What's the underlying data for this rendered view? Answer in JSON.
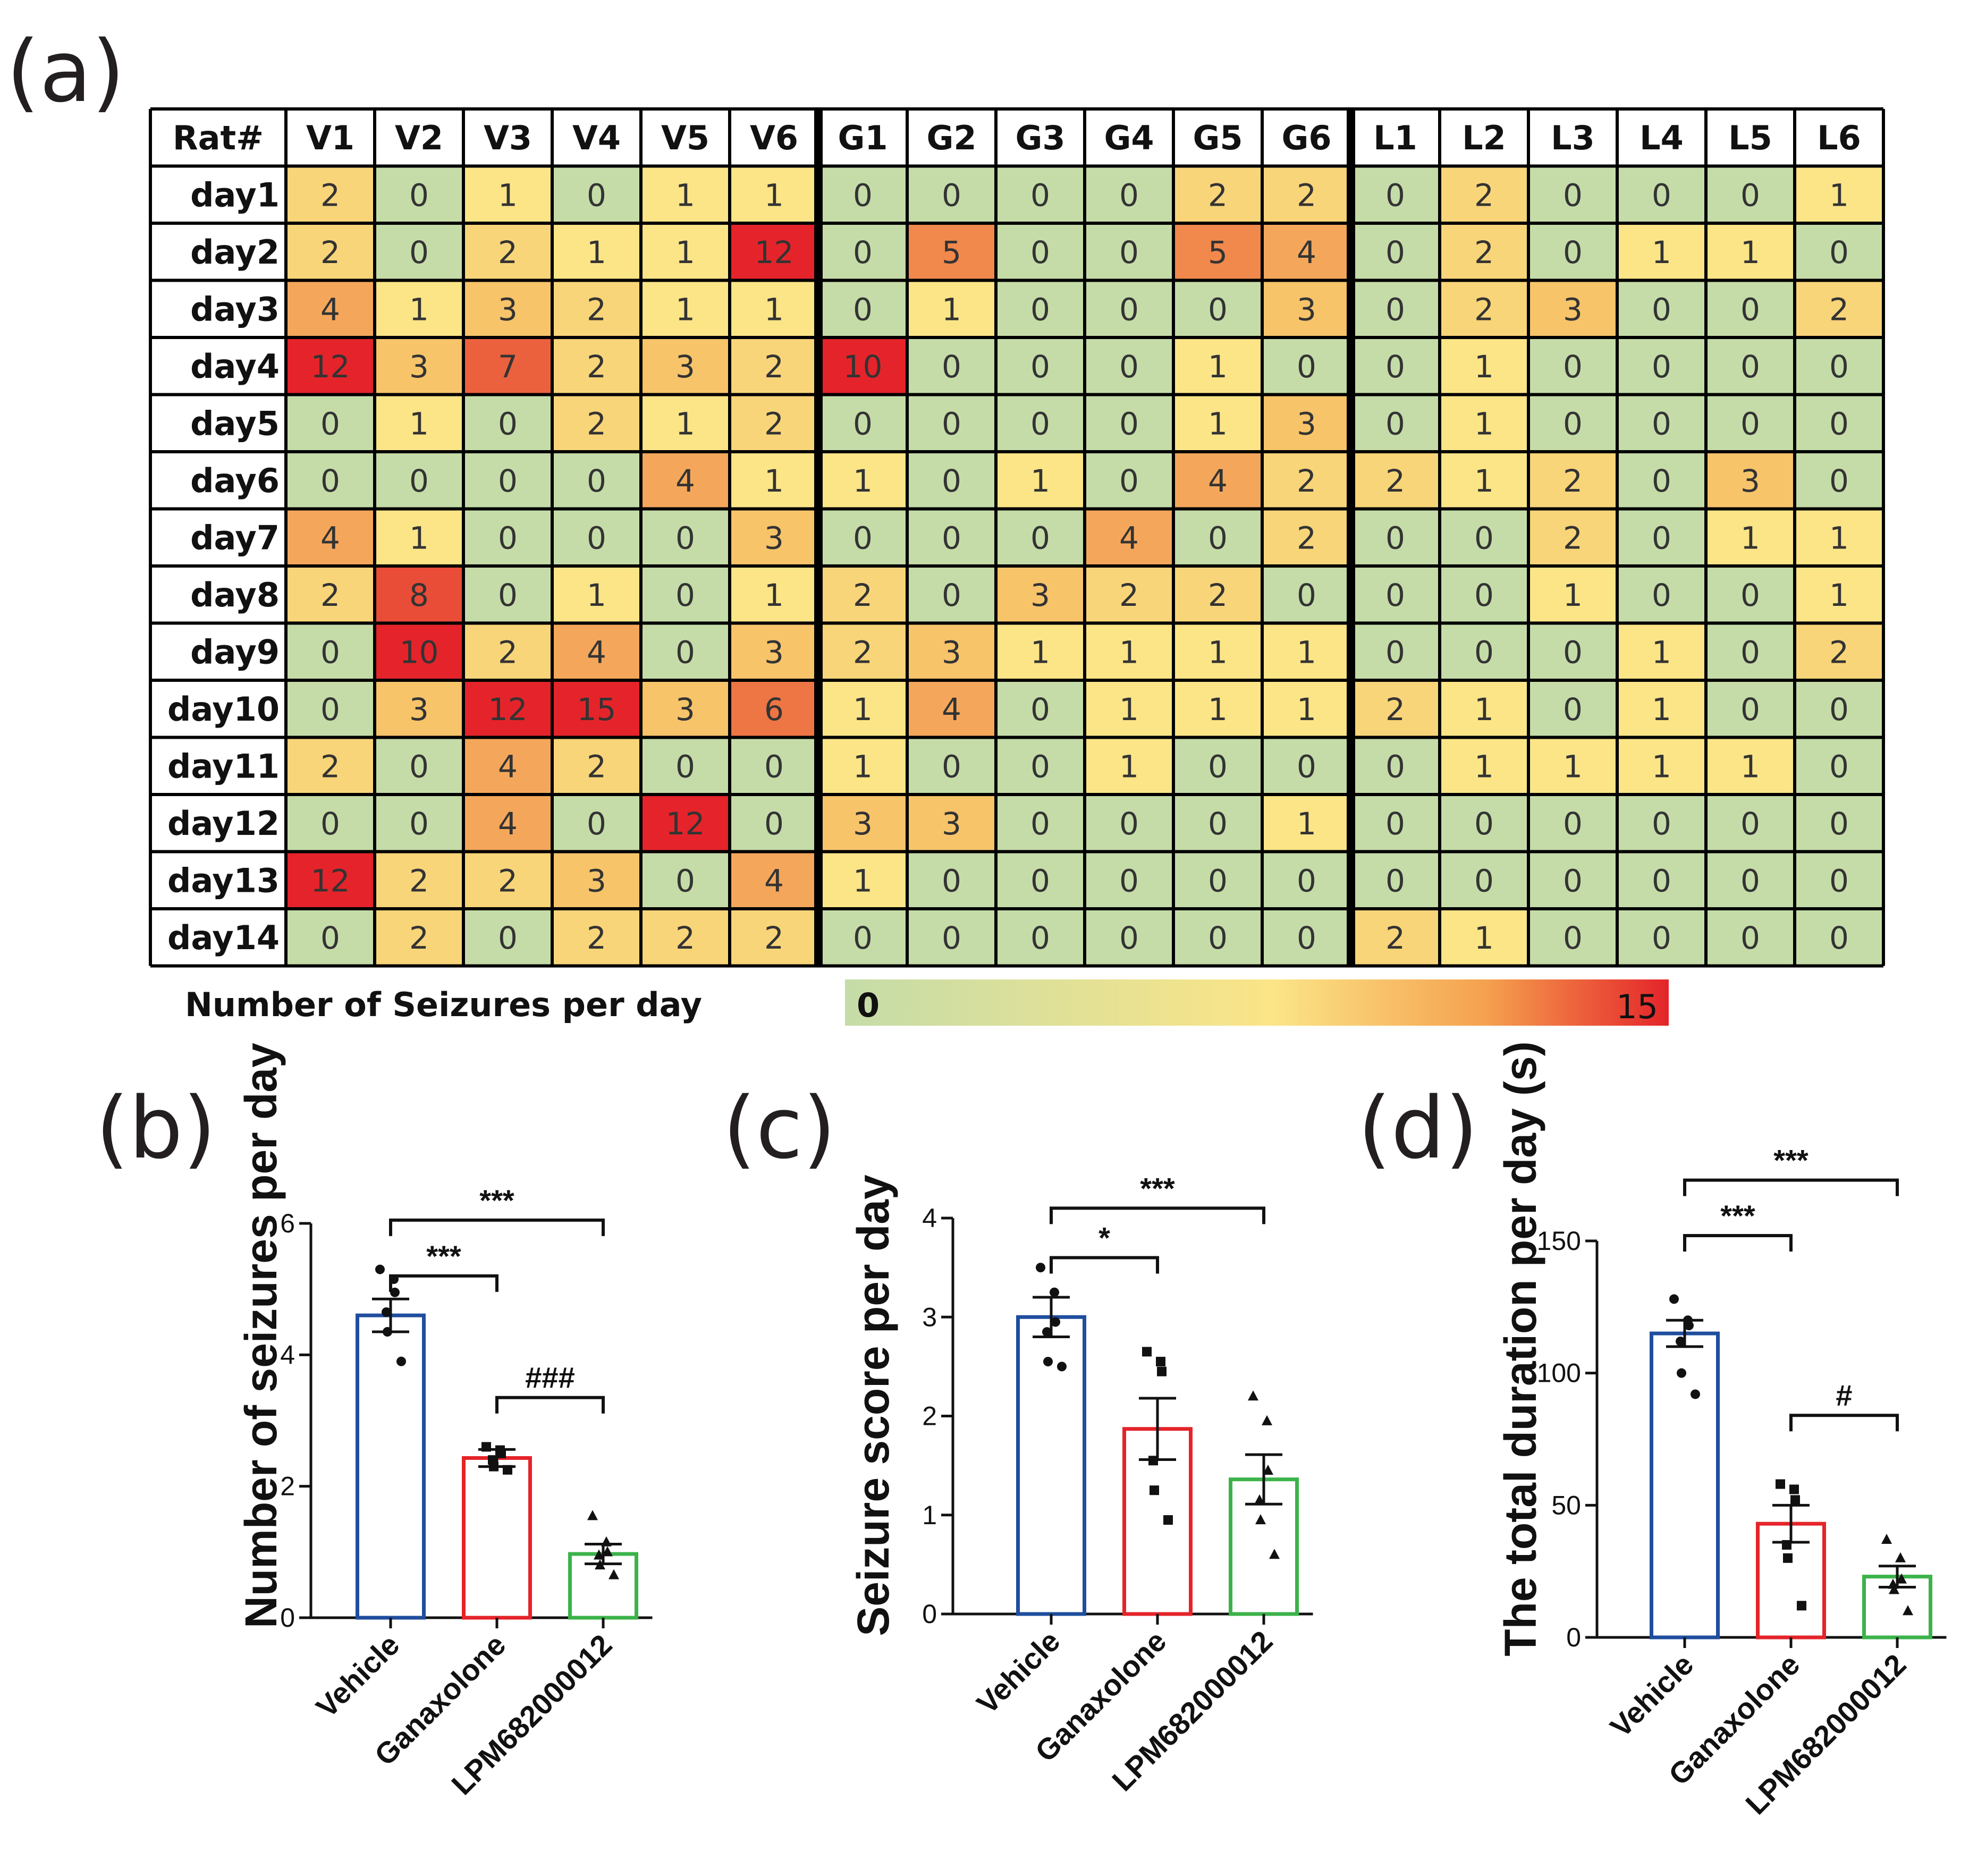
{
  "heatmap": {
    "panel_label": "(a)",
    "corner_header": "Rat#",
    "columns": [
      "V1",
      "V2",
      "V3",
      "V4",
      "V5",
      "V6",
      "G1",
      "G2",
      "G3",
      "G4",
      "G5",
      "G6",
      "L1",
      "L2",
      "L3",
      "L4",
      "L5",
      "L6"
    ],
    "rows": [
      "day1",
      "day2",
      "day3",
      "day4",
      "day5",
      "day6",
      "day7",
      "day8",
      "day9",
      "day10",
      "day11",
      "day12",
      "day13",
      "day14"
    ],
    "legend_label": "Number of Seizures  per day",
    "legend_min": "0",
    "legend_max": "15",
    "colors": {
      "low": "#c5dca8",
      "mid": "#fbe587",
      "high": "#e4242a"
    }
  },
  "chart_data": [
    {
      "type": "heatmap",
      "title": "",
      "x_categories": [
        "V1",
        "V2",
        "V3",
        "V4",
        "V5",
        "V6",
        "G1",
        "G2",
        "G3",
        "G4",
        "G5",
        "G6",
        "L1",
        "L2",
        "L3",
        "L4",
        "L5",
        "L6"
      ],
      "y_categories": [
        "day1",
        "day2",
        "day3",
        "day4",
        "day5",
        "day6",
        "day7",
        "day8",
        "day9",
        "day10",
        "day11",
        "day12",
        "day13",
        "day14"
      ],
      "values": [
        [
          2,
          0,
          1,
          0,
          1,
          1,
          0,
          0,
          0,
          0,
          2,
          2,
          0,
          2,
          0,
          0,
          0,
          1
        ],
        [
          2,
          0,
          2,
          1,
          1,
          12,
          0,
          5,
          0,
          0,
          5,
          4,
          0,
          2,
          0,
          1,
          1,
          0
        ],
        [
          4,
          1,
          3,
          2,
          1,
          1,
          0,
          1,
          0,
          0,
          0,
          3,
          0,
          2,
          3,
          0,
          0,
          2
        ],
        [
          12,
          3,
          7,
          2,
          3,
          2,
          10,
          0,
          0,
          0,
          1,
          0,
          0,
          1,
          0,
          0,
          0,
          0
        ],
        [
          0,
          1,
          0,
          2,
          1,
          2,
          0,
          0,
          0,
          0,
          1,
          3,
          0,
          1,
          0,
          0,
          0,
          0
        ],
        [
          0,
          0,
          0,
          0,
          4,
          1,
          1,
          0,
          1,
          0,
          4,
          2,
          2,
          1,
          2,
          0,
          3,
          0
        ],
        [
          4,
          1,
          0,
          0,
          0,
          3,
          0,
          0,
          0,
          4,
          0,
          2,
          0,
          0,
          2,
          0,
          1,
          1
        ],
        [
          2,
          8,
          0,
          1,
          0,
          1,
          2,
          0,
          3,
          2,
          2,
          0,
          0,
          0,
          1,
          0,
          0,
          1
        ],
        [
          0,
          10,
          2,
          4,
          0,
          3,
          2,
          3,
          1,
          1,
          1,
          1,
          0,
          0,
          0,
          1,
          0,
          2
        ],
        [
          0,
          3,
          12,
          15,
          3,
          6,
          1,
          4,
          0,
          1,
          1,
          1,
          2,
          1,
          0,
          1,
          0,
          0
        ],
        [
          2,
          0,
          4,
          2,
          0,
          0,
          1,
          0,
          0,
          1,
          0,
          0,
          0,
          1,
          1,
          1,
          1,
          0
        ],
        [
          0,
          0,
          4,
          0,
          12,
          0,
          3,
          3,
          0,
          0,
          0,
          1,
          0,
          0,
          0,
          0,
          0,
          0
        ],
        [
          12,
          2,
          2,
          3,
          0,
          4,
          1,
          0,
          0,
          0,
          0,
          0,
          0,
          0,
          0,
          0,
          0,
          0
        ],
        [
          0,
          2,
          0,
          2,
          2,
          2,
          0,
          0,
          0,
          0,
          0,
          0,
          2,
          1,
          0,
          0,
          0,
          0
        ]
      ],
      "color_range": [
        0,
        15
      ]
    },
    {
      "type": "bar",
      "panel_label": "(b)",
      "ylabel": "Number of seizures per day",
      "categories": [
        "Vehicle",
        "Ganaxolone",
        "LPM682000012"
      ],
      "values": [
        4.6,
        2.43,
        0.97
      ],
      "sem": [
        0.25,
        0.13,
        0.15
      ],
      "colors": [
        "#1f4e9e",
        "#e4242a",
        "#3bb34a"
      ],
      "points": [
        [
          5.3,
          5.15,
          4.95,
          4.65,
          4.35,
          3.9
        ],
        [
          2.6,
          2.55,
          2.5,
          2.4,
          2.3,
          2.25
        ],
        [
          1.55,
          1.15,
          1.0,
          0.95,
          0.8,
          0.65
        ]
      ],
      "markers": [
        "circle",
        "square",
        "triangle"
      ],
      "ylim": [
        0,
        6
      ],
      "yticks": [
        0,
        2,
        4,
        6
      ],
      "significance": [
        {
          "from": 0,
          "to": 1,
          "label": "***",
          "level": 5.2
        },
        {
          "from": 0,
          "to": 2,
          "label": "***",
          "level": 6.05
        },
        {
          "from": 1,
          "to": 2,
          "label": "###",
          "level": 3.35
        }
      ]
    },
    {
      "type": "bar",
      "panel_label": "(c)",
      "ylabel": "Seizure score per day",
      "categories": [
        "Vehicle",
        "Ganaxolone",
        "LPM682000012"
      ],
      "values": [
        3.0,
        1.87,
        1.36
      ],
      "sem": [
        0.2,
        0.31,
        0.25
      ],
      "colors": [
        "#1f4e9e",
        "#e4242a",
        "#3bb34a"
      ],
      "points": [
        [
          3.5,
          3.25,
          2.95,
          2.85,
          2.55,
          2.5
        ],
        [
          2.65,
          2.55,
          2.45,
          1.55,
          1.25,
          0.95
        ],
        [
          2.2,
          1.95,
          1.45,
          1.15,
          0.95,
          0.6
        ]
      ],
      "markers": [
        "circle",
        "square",
        "triangle"
      ],
      "ylim": [
        0,
        4
      ],
      "yticks": [
        0,
        1,
        2,
        3,
        4
      ],
      "significance": [
        {
          "from": 0,
          "to": 1,
          "label": "*",
          "level": 3.6
        },
        {
          "from": 0,
          "to": 2,
          "label": "***",
          "level": 4.1
        }
      ]
    },
    {
      "type": "bar",
      "panel_label": "(d)",
      "ylabel": "The total duration per day (s)",
      "categories": [
        "Vehicle",
        "Ganaxolone",
        "LPM682000012"
      ],
      "values": [
        115,
        43,
        23
      ],
      "sem": [
        5,
        7,
        4
      ],
      "colors": [
        "#1f4e9e",
        "#e4242a",
        "#3bb34a"
      ],
      "points": [
        [
          128,
          120,
          118,
          112,
          100,
          92
        ],
        [
          58,
          56,
          52,
          35,
          30,
          12
        ],
        [
          37,
          30,
          22,
          20,
          18,
          10
        ]
      ],
      "markers": [
        "circle",
        "square",
        "triangle"
      ],
      "ylim": [
        0,
        150
      ],
      "yticks": [
        0,
        50,
        100,
        150
      ],
      "significance": [
        {
          "from": 0,
          "to": 1,
          "label": "***",
          "level": 152
        },
        {
          "from": 0,
          "to": 2,
          "label": "***",
          "level": 173
        },
        {
          "from": 1,
          "to": 2,
          "label": "#",
          "level": 84
        }
      ]
    }
  ]
}
